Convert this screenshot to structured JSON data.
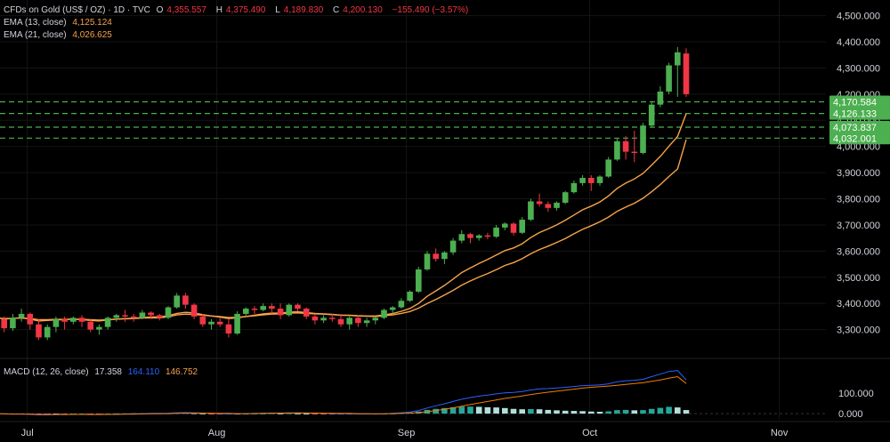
{
  "header": {
    "symbol": "CFDs on Gold (US$ / OZ) · 1D · TVC",
    "ohlc": [
      {
        "k": "O",
        "v": "4,355.557"
      },
      {
        "k": "H",
        "v": "4,375.490"
      },
      {
        "k": "L",
        "v": "4,189.830"
      },
      {
        "k": "C",
        "v": "4,200.130"
      }
    ],
    "change": "−155.490 (−3.57%)",
    "ema13_label": "EMA (13, close)",
    "ema13_value": "4,125.124",
    "ema21_label": "EMA (21, close)",
    "ema21_value": "4,026.625",
    "macd_label": "MACD (12, 26, close)",
    "macd_hist": "17.358",
    "macd_line": "164.110",
    "macd_signal": "146.752"
  },
  "colors": {
    "up": "#4caf50",
    "down": "#f23645",
    "ema13": "#f7a34a",
    "ema21": "#f7a34a",
    "macd": "#2962ff",
    "signal": "#f57c00",
    "level": "#4caf50",
    "axis_text": "#d1d4dc"
  },
  "chart_data": {
    "type": "candlestick",
    "price_axis": {
      "range": [
        3200,
        4560
      ],
      "ticks": [
        "3,300.000",
        "3,400.000",
        "3,500.000",
        "3,600.000",
        "3,700.000",
        "3,800.000",
        "3,900.000",
        "4,000.000",
        "4,100.000",
        "4,200.000",
        "4,300.000",
        "4,400.000",
        "4,500.000"
      ],
      "tick_values": [
        3300,
        3400,
        3500,
        3600,
        3700,
        3800,
        3900,
        4000,
        4100,
        4200,
        4300,
        4400,
        4500
      ]
    },
    "time_axis": {
      "ticks": [
        "Jul",
        "Aug",
        "Sep",
        "Oct",
        "Nov"
      ],
      "tick_days": [
        3,
        34,
        65,
        95,
        126
      ]
    },
    "horizontal_levels": [
      {
        "value": 4170.584,
        "label": "4,170.584"
      },
      {
        "value": 4126.133,
        "label": "4,126.133"
      },
      {
        "value": 4073.837,
        "label": "4,073.837"
      },
      {
        "value": 4032.001,
        "label": "4,032.001"
      }
    ],
    "candles": [
      [
        3355,
        3365,
        3320,
        3340
      ],
      [
        3340,
        3350,
        3290,
        3305
      ],
      [
        3305,
        3360,
        3295,
        3345
      ],
      [
        3345,
        3380,
        3330,
        3360
      ],
      [
        3360,
        3365,
        3300,
        3320
      ],
      [
        3320,
        3340,
        3260,
        3270
      ],
      [
        3270,
        3320,
        3260,
        3310
      ],
      [
        3310,
        3350,
        3290,
        3340
      ],
      [
        3340,
        3350,
        3300,
        3330
      ],
      [
        3330,
        3350,
        3320,
        3345
      ],
      [
        3345,
        3355,
        3310,
        3330
      ],
      [
        3330,
        3340,
        3290,
        3300
      ],
      [
        3300,
        3320,
        3280,
        3310
      ],
      [
        3310,
        3350,
        3300,
        3345
      ],
      [
        3345,
        3360,
        3330,
        3355
      ],
      [
        3355,
        3375,
        3330,
        3350
      ],
      [
        3350,
        3360,
        3330,
        3345
      ],
      [
        3345,
        3375,
        3340,
        3365
      ],
      [
        3365,
        3370,
        3340,
        3355
      ],
      [
        3355,
        3360,
        3335,
        3345
      ],
      [
        3345,
        3390,
        3340,
        3385
      ],
      [
        3385,
        3440,
        3380,
        3430
      ],
      [
        3430,
        3440,
        3380,
        3395
      ],
      [
        3395,
        3400,
        3340,
        3350
      ],
      [
        3350,
        3360,
        3310,
        3320
      ],
      [
        3320,
        3340,
        3300,
        3330
      ],
      [
        3330,
        3345,
        3310,
        3320
      ],
      [
        3320,
        3340,
        3270,
        3285
      ],
      [
        3285,
        3370,
        3280,
        3360
      ],
      [
        3360,
        3385,
        3350,
        3380
      ],
      [
        3380,
        3390,
        3360,
        3375
      ],
      [
        3375,
        3400,
        3370,
        3390
      ],
      [
        3390,
        3400,
        3360,
        3380
      ],
      [
        3380,
        3400,
        3340,
        3355
      ],
      [
        3355,
        3400,
        3350,
        3395
      ],
      [
        3395,
        3400,
        3370,
        3380
      ],
      [
        3380,
        3385,
        3340,
        3350
      ],
      [
        3350,
        3360,
        3320,
        3335
      ],
      [
        3335,
        3355,
        3325,
        3345
      ],
      [
        3345,
        3360,
        3330,
        3340
      ],
      [
        3340,
        3360,
        3310,
        3320
      ],
      [
        3320,
        3350,
        3300,
        3345
      ],
      [
        3345,
        3355,
        3310,
        3325
      ],
      [
        3325,
        3345,
        3310,
        3335
      ],
      [
        3335,
        3350,
        3320,
        3345
      ],
      [
        3345,
        3380,
        3340,
        3375
      ],
      [
        3375,
        3390,
        3360,
        3385
      ],
      [
        3385,
        3420,
        3380,
        3410
      ],
      [
        3410,
        3450,
        3405,
        3445
      ],
      [
        3445,
        3540,
        3440,
        3530
      ],
      [
        3530,
        3600,
        3525,
        3590
      ],
      [
        3590,
        3610,
        3560,
        3570
      ],
      [
        3570,
        3600,
        3550,
        3595
      ],
      [
        3595,
        3650,
        3585,
        3640
      ],
      [
        3640,
        3680,
        3630,
        3665
      ],
      [
        3665,
        3670,
        3630,
        3650
      ],
      [
        3650,
        3665,
        3640,
        3660
      ],
      [
        3660,
        3670,
        3645,
        3655
      ],
      [
        3655,
        3700,
        3650,
        3690
      ],
      [
        3690,
        3710,
        3680,
        3705
      ],
      [
        3705,
        3710,
        3660,
        3670
      ],
      [
        3670,
        3730,
        3665,
        3720
      ],
      [
        3720,
        3800,
        3715,
        3790
      ],
      [
        3790,
        3820,
        3770,
        3780
      ],
      [
        3780,
        3790,
        3750,
        3765
      ],
      [
        3765,
        3790,
        3755,
        3785
      ],
      [
        3785,
        3830,
        3780,
        3825
      ],
      [
        3825,
        3870,
        3820,
        3860
      ],
      [
        3860,
        3890,
        3850,
        3880
      ],
      [
        3880,
        3890,
        3830,
        3860
      ],
      [
        3860,
        3890,
        3850,
        3885
      ],
      [
        3885,
        3960,
        3880,
        3950
      ],
      [
        3950,
        4030,
        3945,
        4020
      ],
      [
        4020,
        4040,
        3950,
        3980
      ],
      [
        3980,
        4060,
        3940,
        3975
      ],
      [
        3975,
        4090,
        3970,
        4080
      ],
      [
        4080,
        4170,
        4075,
        4160
      ],
      [
        4160,
        4230,
        4150,
        4210
      ],
      [
        4210,
        4320,
        4200,
        4310
      ],
      [
        4310,
        4380,
        4190,
        4360
      ],
      [
        4355.557,
        4375.49,
        4189.83,
        4200.13
      ]
    ],
    "ema13": [
      3348,
      3340,
      3343,
      3345,
      3340,
      3333,
      3335,
      3337,
      3338,
      3340,
      3338,
      3335,
      3333,
      3337,
      3340,
      3342,
      3343,
      3346,
      3348,
      3348,
      3353,
      3362,
      3366,
      3364,
      3357,
      3352,
      3348,
      3342,
      3345,
      3350,
      3355,
      3360,
      3363,
      3363,
      3367,
      3368,
      3365,
      3362,
      3360,
      3358,
      3355,
      3355,
      3353,
      3352,
      3352,
      3356,
      3361,
      3370,
      3381,
      3400,
      3427,
      3448,
      3469,
      3493,
      3518,
      3536,
      3553,
      3568,
      3585,
      3602,
      3612,
      3628,
      3652,
      3671,
      3685,
      3700,
      3718,
      3738,
      3758,
      3772,
      3788,
      3811,
      3840,
      3860,
      3876,
      3897,
      3929,
      3962,
      4001,
      4038,
      4125.124
    ],
    "ema21": [
      3345,
      3342,
      3343,
      3344,
      3342,
      3338,
      3338,
      3339,
      3339,
      3340,
      3339,
      3338,
      3336,
      3338,
      3340,
      3341,
      3342,
      3344,
      3345,
      3345,
      3349,
      3356,
      3359,
      3358,
      3355,
      3352,
      3350,
      3346,
      3347,
      3350,
      3353,
      3356,
      3359,
      3360,
      3363,
      3364,
      3362,
      3360,
      3359,
      3357,
      3355,
      3354,
      3352,
      3351,
      3350,
      3353,
      3356,
      3362,
      3369,
      3382,
      3400,
      3415,
      3432,
      3450,
      3470,
      3486,
      3501,
      3514,
      3529,
      3545,
      3556,
      3571,
      3590,
      3606,
      3619,
      3633,
      3648,
      3666,
      3683,
      3697,
      3712,
      3730,
      3752,
      3768,
      3783,
      3802,
      3827,
      3854,
      3885,
      3914,
      4026.625
    ],
    "macd_line": [
      0,
      -2,
      -3,
      -3,
      -4,
      -6,
      -6,
      -5,
      -5,
      -4,
      -4,
      -5,
      -5,
      -4,
      -3,
      -2,
      -1,
      0,
      1,
      1,
      2,
      4,
      5,
      4,
      3,
      1,
      0,
      -2,
      -1,
      0,
      1,
      2,
      3,
      3,
      4,
      4,
      3,
      2,
      1,
      0,
      -1,
      -1,
      -2,
      -2,
      -2,
      -1,
      1,
      4,
      8,
      15,
      27,
      38,
      48,
      59,
      70,
      78,
      85,
      90,
      96,
      101,
      103,
      107,
      115,
      120,
      122,
      125,
      128,
      132,
      136,
      138,
      140,
      145,
      155,
      160,
      162,
      167,
      180,
      192,
      205,
      210,
      164.11
    ],
    "macd_signal": [
      0,
      -1,
      -2,
      -2,
      -3,
      -4,
      -4,
      -4,
      -4,
      -4,
      -4,
      -4,
      -4,
      -4,
      -4,
      -3,
      -3,
      -2,
      -1,
      -1,
      0,
      1,
      2,
      2,
      2,
      2,
      1,
      1,
      0,
      0,
      0,
      1,
      1,
      2,
      2,
      3,
      3,
      3,
      2,
      2,
      1,
      1,
      0,
      0,
      -1,
      -1,
      0,
      1,
      2,
      5,
      9,
      15,
      21,
      28,
      36,
      44,
      52,
      59,
      66,
      74,
      80,
      86,
      93,
      99,
      104,
      109,
      114,
      119,
      124,
      128,
      131,
      134,
      138,
      142,
      146,
      150,
      157,
      164,
      172,
      180,
      146.752
    ],
    "macd_hist": [
      0,
      -1,
      -1,
      -1,
      -1,
      -2,
      -2,
      -1,
      -1,
      0,
      0,
      -1,
      -1,
      0,
      1,
      1,
      2,
      2,
      2,
      2,
      2,
      3,
      3,
      2,
      1,
      -1,
      -1,
      -3,
      -1,
      0,
      1,
      1,
      2,
      1,
      2,
      1,
      0,
      -1,
      -1,
      -2,
      -2,
      -2,
      -2,
      -2,
      -1,
      0,
      1,
      3,
      6,
      10,
      18,
      23,
      27,
      31,
      34,
      34,
      33,
      31,
      30,
      27,
      23,
      21,
      22,
      21,
      18,
      16,
      14,
      13,
      12,
      10,
      9,
      11,
      17,
      18,
      16,
      17,
      23,
      28,
      33,
      30,
      17.358
    ],
    "macd_axis": {
      "range": [
        -30,
        260
      ],
      "ticks": [
        "0.000",
        "100.000"
      ],
      "tick_values": [
        0,
        100
      ]
    }
  }
}
